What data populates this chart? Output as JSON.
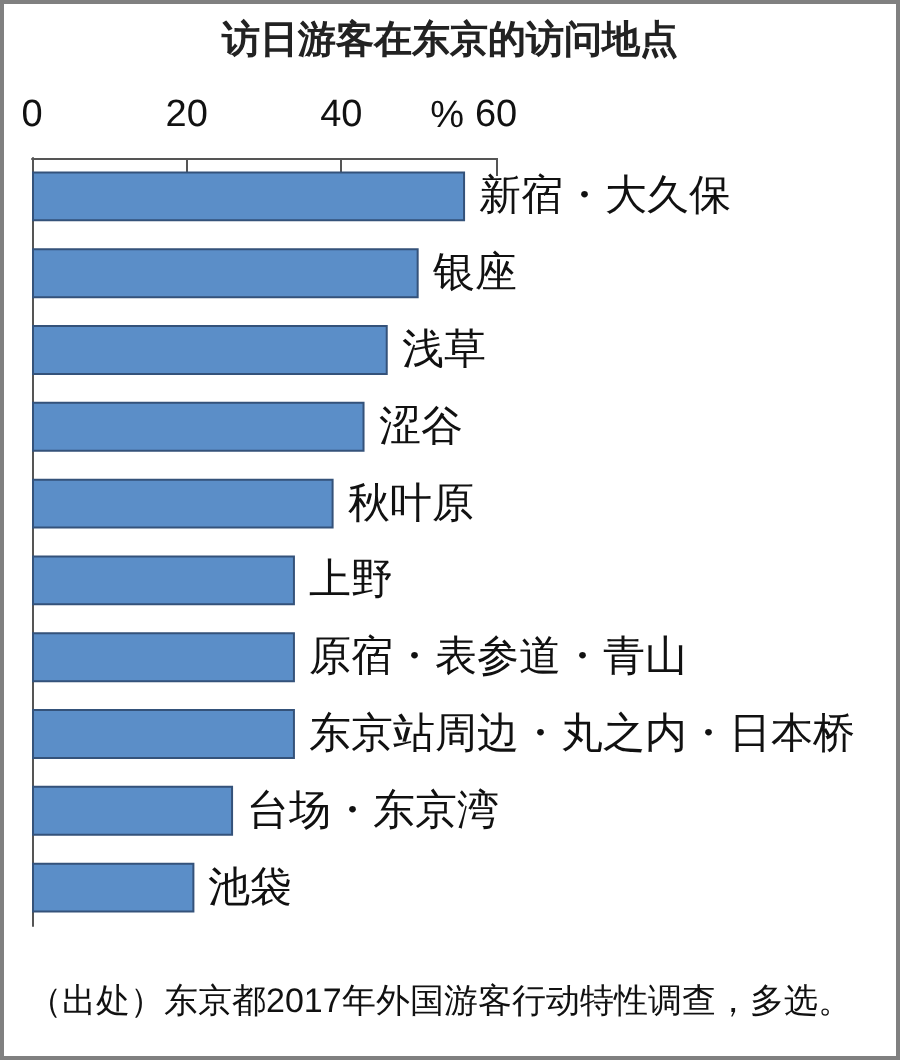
{
  "chart_data": {
    "type": "bar",
    "orientation": "horizontal",
    "title": "访日游客在东京的访问地点",
    "xlabel": "%",
    "categories": [
      "新宿・大久保",
      "银座",
      "浅草",
      "涩谷",
      "秋叶原",
      "上野",
      "原宿・表参道・青山",
      "东京站周边・丸之内・日本桥",
      "台场・东京湾",
      "池袋"
    ],
    "values": [
      56,
      50,
      46,
      43,
      39,
      34,
      34,
      34,
      26,
      21
    ],
    "color": "#5b8ec8",
    "xlim": [
      0,
      60
    ],
    "xticks": [
      0,
      20,
      40,
      60
    ],
    "grid": false,
    "annotations": [
      "（出处）东京都2017年外国游客行动特性调查，多选。"
    ]
  }
}
